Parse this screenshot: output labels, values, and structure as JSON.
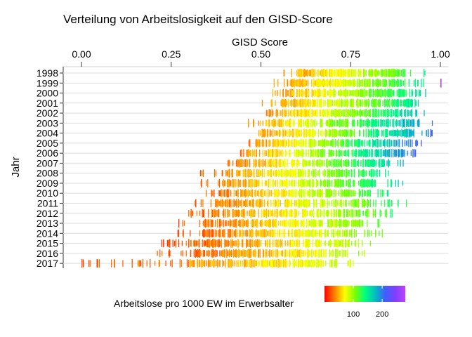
{
  "chart_data": {
    "type": "heatmap",
    "title": "Verteilung von Arbeitslosigkeit auf den GISD-Score",
    "xlabel": "GISD Score",
    "ylabel": "Jahr",
    "x_axis_position": "top",
    "xlim": [
      0,
      1
    ],
    "x_ticks": [
      "0.00",
      "0.25",
      "0.50",
      "0.75",
      "1.00"
    ],
    "x_tick_values": [
      0,
      0.25,
      0.5,
      0.75,
      1.0
    ],
    "categories": [
      "1998",
      "1999",
      "2000",
      "2001",
      "2002",
      "2003",
      "2004",
      "2005",
      "2006",
      "2007",
      "2008",
      "2009",
      "2010",
      "2011",
      "2012",
      "2013",
      "2014",
      "2015",
      "2016",
      "2017"
    ],
    "grid": true,
    "legend": {
      "title": "Arbeitslose pro 1000 EW im Erwerbsalter",
      "placement": "bottom",
      "ticks": [
        "100",
        "200"
      ],
      "tick_values": [
        100,
        200
      ],
      "value_range": [
        0,
        280
      ],
      "colors": [
        "#ff0000",
        "#ff7f00",
        "#ffff00",
        "#7fff00",
        "#00ff7f",
        "#00bfbf",
        "#3f5fff",
        "#7f3fff",
        "#bf3fff"
      ]
    },
    "series": [
      {
        "year": "1998",
        "gisd_min": 0.55,
        "gisd_max": 0.97,
        "dense_low": 0.6,
        "dense_high": 0.9,
        "rate_at_min": 40,
        "rate_at_max": 140
      },
      {
        "year": "1999",
        "gisd_min": 0.53,
        "gisd_max": 0.96,
        "dense_low": 0.58,
        "dense_high": 0.9,
        "rate_at_min": 40,
        "rate_at_max": 150,
        "outlier_x": 1.0,
        "outlier_rate": 270
      },
      {
        "year": "2000",
        "gisd_min": 0.52,
        "gisd_max": 0.96,
        "dense_low": 0.57,
        "dense_high": 0.9,
        "rate_at_min": 40,
        "rate_at_max": 160
      },
      {
        "year": "2001",
        "gisd_min": 0.5,
        "gisd_max": 0.98,
        "dense_low": 0.55,
        "dense_high": 0.92,
        "rate_at_min": 38,
        "rate_at_max": 170
      },
      {
        "year": "2002",
        "gisd_min": 0.5,
        "gisd_max": 0.96,
        "dense_low": 0.54,
        "dense_high": 0.92,
        "rate_at_min": 38,
        "rate_at_max": 180
      },
      {
        "year": "2003",
        "gisd_min": 0.45,
        "gisd_max": 0.99,
        "dense_low": 0.52,
        "dense_high": 0.94,
        "rate_at_min": 38,
        "rate_at_max": 210
      },
      {
        "year": "2004",
        "gisd_min": 0.48,
        "gisd_max": 0.98,
        "dense_low": 0.5,
        "dense_high": 0.93,
        "rate_at_min": 38,
        "rate_at_max": 205
      },
      {
        "year": "2005",
        "gisd_min": 0.46,
        "gisd_max": 0.95,
        "dense_low": 0.48,
        "dense_high": 0.92,
        "rate_at_min": 38,
        "rate_at_max": 215
      },
      {
        "year": "2006",
        "gisd_min": 0.43,
        "gisd_max": 0.93,
        "dense_low": 0.46,
        "dense_high": 0.9,
        "rate_at_min": 36,
        "rate_at_max": 210
      },
      {
        "year": "2007",
        "gisd_min": 0.4,
        "gisd_max": 0.9,
        "dense_low": 0.43,
        "dense_high": 0.86,
        "rate_at_min": 30,
        "rate_at_max": 185
      },
      {
        "year": "2008",
        "gisd_min": 0.33,
        "gisd_max": 0.88,
        "dense_low": 0.4,
        "dense_high": 0.82,
        "rate_at_min": 28,
        "rate_at_max": 160
      },
      {
        "year": "2009",
        "gisd_min": 0.33,
        "gisd_max": 0.9,
        "dense_low": 0.39,
        "dense_high": 0.82,
        "rate_at_min": 28,
        "rate_at_max": 165
      },
      {
        "year": "2010",
        "gisd_min": 0.33,
        "gisd_max": 0.89,
        "dense_low": 0.38,
        "dense_high": 0.8,
        "rate_at_min": 28,
        "rate_at_max": 150
      },
      {
        "year": "2011",
        "gisd_min": 0.3,
        "gisd_max": 0.91,
        "dense_low": 0.37,
        "dense_high": 0.8,
        "rate_at_min": 25,
        "rate_at_max": 140
      },
      {
        "year": "2012",
        "gisd_min": 0.29,
        "gisd_max": 0.87,
        "dense_low": 0.36,
        "dense_high": 0.8,
        "rate_at_min": 25,
        "rate_at_max": 130
      },
      {
        "year": "2013",
        "gisd_min": 0.26,
        "gisd_max": 0.84,
        "dense_low": 0.34,
        "dense_high": 0.78,
        "rate_at_min": 22,
        "rate_at_max": 120
      },
      {
        "year": "2014",
        "gisd_min": 0.26,
        "gisd_max": 0.84,
        "dense_low": 0.33,
        "dense_high": 0.77,
        "rate_at_min": 22,
        "rate_at_max": 115
      },
      {
        "year": "2015",
        "gisd_min": 0.22,
        "gisd_max": 0.82,
        "dense_low": 0.31,
        "dense_high": 0.75,
        "rate_at_min": 20,
        "rate_at_max": 105
      },
      {
        "year": "2016",
        "gisd_min": 0.2,
        "gisd_max": 0.79,
        "dense_low": 0.3,
        "dense_high": 0.74,
        "rate_at_min": 20,
        "rate_at_max": 95
      },
      {
        "year": "2017",
        "gisd_min": 0.0,
        "gisd_max": 0.78,
        "dense_low": 0.28,
        "dense_high": 0.72,
        "rate_at_min": 20,
        "rate_at_max": 90,
        "outliers": [
          0.0,
          0.09,
          0.14,
          0.17,
          0.19
        ]
      }
    ]
  }
}
